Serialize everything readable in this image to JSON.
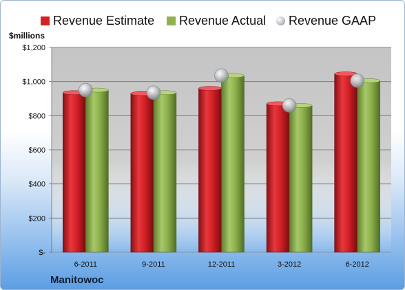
{
  "legend": {
    "estimate_label": "Revenue Estimate",
    "actual_label": "Revenue Actual",
    "gaap_label": "Revenue GAAP"
  },
  "units_label": "$millions",
  "company": "Manitowoc",
  "colors": {
    "estimate": "#d42127",
    "actual": "#8fb24e",
    "gaap": "#bfc3c8",
    "plot_area": "#c6c6c6"
  },
  "chart_data": {
    "type": "bar",
    "title": "",
    "xlabel": "",
    "ylabel": "$millions",
    "ylim": [
      0,
      1200
    ],
    "yticks": [
      0,
      200,
      400,
      600,
      800,
      1000,
      1200
    ],
    "ytick_labels": [
      "$-",
      "$200",
      "$400",
      "$600",
      "$800",
      "$1,000",
      "$1,200"
    ],
    "categories": [
      "6-2011",
      "9-2011",
      "12-2011",
      "3-2012",
      "6-2012"
    ],
    "series": [
      {
        "name": "Revenue Estimate",
        "kind": "bar",
        "values": [
          935,
          930,
          960,
          870,
          1045
        ]
      },
      {
        "name": "Revenue Actual",
        "kind": "bar",
        "values": [
          950,
          935,
          1035,
          860,
          1005
        ]
      },
      {
        "name": "Revenue GAAP",
        "kind": "marker",
        "values": [
          950,
          935,
          1035,
          860,
          1005
        ]
      }
    ],
    "grid": true,
    "legend_position": "top"
  }
}
